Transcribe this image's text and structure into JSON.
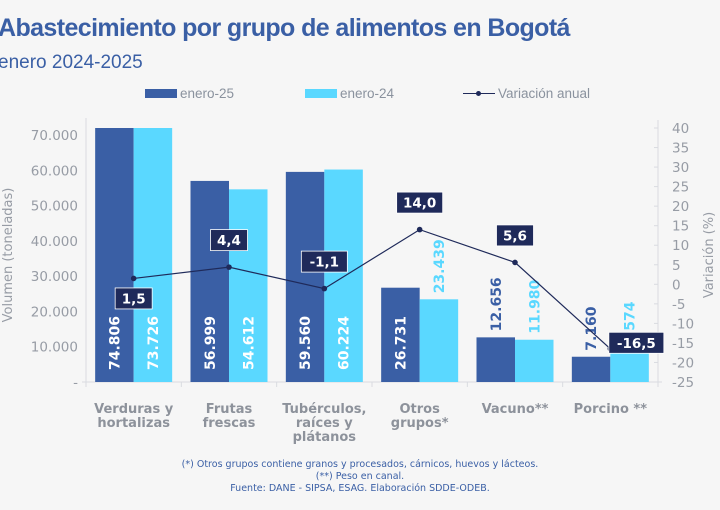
{
  "header": {
    "title": "Abastecimiento por grupo de alimentos en Bogotá",
    "subtitle": "enero 2024-2025"
  },
  "colors": {
    "enero25": "#3a5fa5",
    "enero24": "#5ad8ff",
    "line": "#1f2a5a",
    "label_box": "#1f2a5a",
    "axis_text": "#979ca5",
    "title": "#3a5fa5"
  },
  "chart_data": {
    "type": "bar",
    "title": "Abastecimiento por grupo de alimentos en Bogotá",
    "subtitle": "enero 2024-2025",
    "categories": [
      [
        "Verduras y",
        "hortalizas"
      ],
      [
        "Frutas",
        "frescas"
      ],
      [
        "Tubérculos,",
        "raíces y",
        "plátanos"
      ],
      [
        "Otros",
        "grupos*"
      ],
      [
        "Vacuno**"
      ],
      [
        "Porcino **"
      ]
    ],
    "series": [
      {
        "name": "enero-25",
        "type": "bar",
        "axis": "left",
        "values": [
          74806,
          56999,
          59560,
          26731,
          12656,
          7160
        ],
        "labels": [
          "74.806",
          "56.999",
          "59.560",
          "26.731",
          "12.656",
          "7.160"
        ]
      },
      {
        "name": "enero-24",
        "type": "bar",
        "axis": "left",
        "values": [
          73726,
          54612,
          60224,
          23439,
          11980,
          8574
        ],
        "labels": [
          "73.726",
          "54.612",
          "60.224",
          "23.439",
          "11.980",
          "8.574"
        ]
      },
      {
        "name": "Variación anual",
        "type": "line",
        "axis": "right",
        "values": [
          1.5,
          4.4,
          -1.1,
          14.0,
          5.6,
          -16.5
        ],
        "labels": [
          "1,5",
          "4,4",
          "-1,1",
          "14,0",
          "5,6",
          "-16,5"
        ]
      }
    ],
    "ylabel": "Volumen (toneladas)",
    "y2label": "Variación (%)",
    "ylim": [
      0,
      72000
    ],
    "y2lim": [
      -25,
      40
    ],
    "yticks": [
      0,
      10000,
      20000,
      30000,
      40000,
      50000,
      60000,
      70000
    ],
    "ytick_labels": [
      "-",
      "10.000",
      "20.000",
      "30.000",
      "40.000",
      "50.000",
      "60.000",
      "70.000"
    ],
    "y2ticks": [
      40,
      35,
      30,
      25,
      20,
      15,
      10,
      5,
      0,
      -5,
      -10,
      -15,
      -20,
      -25
    ],
    "y2tick_labels": [
      "40",
      "35",
      "30",
      "25",
      "20",
      "15",
      "10",
      "5",
      "0",
      "-5",
      "-10",
      "-15",
      "-20",
      "-25"
    ],
    "legend": {
      "position": "top-center",
      "entries": [
        "enero-25",
        "enero-24",
        "Variación anual"
      ]
    },
    "grid": false
  },
  "footnotes": [
    "(*) Otros grupos contiene granos y procesados, cárnicos, huevos y lácteos.",
    "(**) Peso en canal.",
    "Fuente: DANE - SIPSA, ESAG. Elaboración SDDE-ODEB."
  ]
}
